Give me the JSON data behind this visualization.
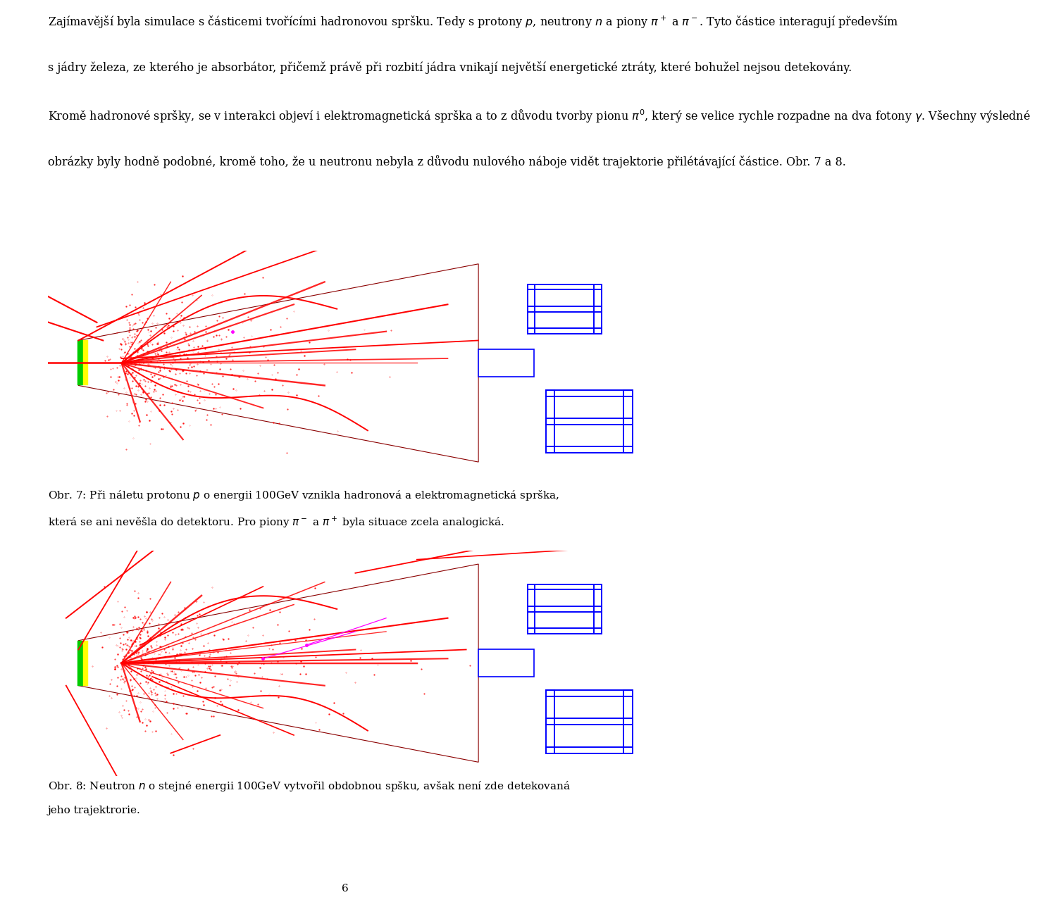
{
  "background": "#ffffff",
  "page_number": "6",
  "text_block": "Zajímavější byla simulace s částicemi tvořícími hadronovou spršku. Tedy s protony $p$, neutrony $n$ a piony $\\pi^+$ a $\\pi^-$. Tyto částice interagují především s jádry železa, ze kterého je absorbátor, přičemž právě při rozbití jádra vnikají největší energetické ztráty, které bohužel nejsou detekovány. Kromě hadronové spršky, se v interakci objeví i elektromagnetická sprška a to z důvodu tvorby pionu $\\pi^0$, který se velice rychle rozpadne na dva fotony $\\gamma$. Všechny výsledné obrázky byly hodně podobné, kromě toho, že u neutronu nebyla z důvodu nulového náboje vidět trajektorie přilétávající částice. Obr. 7 a 8.",
  "caption1_line1": "Obr. 7: Při náletu protonu $p$ o energii 100GeV vznikla hadronová a elektromagnetická sprška,",
  "caption1_line2": "která se ani nevěšla do detektoru. Pro piony $\\pi^-$ a $\\pi^+$ byla situace zcela analogická.",
  "caption2_line1": "Obr. 8: Neutron $n$ o stejné energii 100GeV vytvořil obdobnou spšku, avšak není zde detekovaná",
  "caption2_line2": "jeho trajektrorie.",
  "font_size_body": 11.5,
  "font_size_caption": 11.0,
  "font_size_page": 11.0
}
